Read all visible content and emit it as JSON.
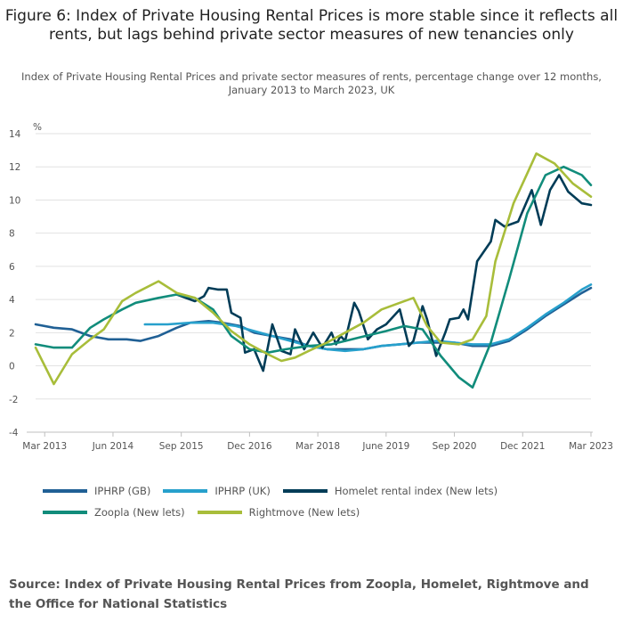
{
  "title": "Figure 6: Index of Private Housing Rental Prices is more stable since it reflects all rents, but lags behind private sector measures of new tenancies only",
  "subtitle": "Index of Private Housing Rental Prices and private sector measures of rents, percentage change over 12 months, January 2013 to March 2023, UK",
  "source": "Source: Index of Private Housing Rental Prices from Zoopla, Homelet, Rightmove and the Office for National Statistics",
  "chart_data": {
    "type": "line",
    "title": "Figure 6: Index of Private Housing Rental Prices is more stable since it reflects all rents, but lags behind private sector measures of new tenancies only",
    "subtitle": "Index of Private Housing Rental Prices and private sector measures of rents, percentage change over 12 months, January 2013 to March 2023, UK",
    "ylabel": "%",
    "xlabel": "",
    "ylim": [
      -4,
      14
    ],
    "yticks": [
      -4,
      -2,
      0,
      2,
      4,
      6,
      8,
      10,
      12,
      14
    ],
    "xlim": [
      "2013-01",
      "2023-03"
    ],
    "xticks": [
      {
        "date": "2013-03",
        "label": "Mar 2013"
      },
      {
        "date": "2014-06",
        "label": "Jun 2014"
      },
      {
        "date": "2015-09",
        "label": "Sep 2015"
      },
      {
        "date": "2016-12",
        "label": "Dec 2016"
      },
      {
        "date": "2018-03",
        "label": "Mar 2018"
      },
      {
        "date": "2019-06",
        "label": "June 2019"
      },
      {
        "date": "2020-09",
        "label": "Sep 2020"
      },
      {
        "date": "2021-12",
        "label": "Dec 2021"
      },
      {
        "date": "2023-03",
        "label": "Mar 2023"
      }
    ],
    "grid": true,
    "legend_position": "bottom",
    "series": [
      {
        "name": "IPHRP (GB)",
        "color": "#206095",
        "points": [
          [
            "2013-01",
            2.5
          ],
          [
            "2013-05",
            2.3
          ],
          [
            "2013-09",
            2.2
          ],
          [
            "2014-01",
            1.8
          ],
          [
            "2014-05",
            1.6
          ],
          [
            "2014-09",
            1.6
          ],
          [
            "2014-12",
            1.5
          ],
          [
            "2015-04",
            1.8
          ],
          [
            "2015-08",
            2.3
          ],
          [
            "2015-11",
            2.6
          ],
          [
            "2016-03",
            2.7
          ],
          [
            "2016-06",
            2.6
          ],
          [
            "2016-10",
            2.4
          ],
          [
            "2017-01",
            2.0
          ],
          [
            "2017-05",
            1.8
          ],
          [
            "2017-09",
            1.6
          ],
          [
            "2018-01",
            1.2
          ],
          [
            "2018-05",
            1.0
          ],
          [
            "2018-09",
            1.0
          ],
          [
            "2019-01",
            1.0
          ],
          [
            "2019-05",
            1.2
          ],
          [
            "2019-09",
            1.3
          ],
          [
            "2020-01",
            1.4
          ],
          [
            "2020-05",
            1.4
          ],
          [
            "2020-09",
            1.4
          ],
          [
            "2021-01",
            1.2
          ],
          [
            "2021-05",
            1.2
          ],
          [
            "2021-09",
            1.5
          ],
          [
            "2022-01",
            2.2
          ],
          [
            "2022-05",
            3.0
          ],
          [
            "2022-09",
            3.7
          ],
          [
            "2023-01",
            4.4
          ],
          [
            "2023-03",
            4.7
          ]
        ]
      },
      {
        "name": "IPHRP (UK)",
        "color": "#27a0cc",
        "points": [
          [
            "2015-01",
            2.5
          ],
          [
            "2015-06",
            2.5
          ],
          [
            "2015-11",
            2.6
          ],
          [
            "2016-04",
            2.6
          ],
          [
            "2016-09",
            2.4
          ],
          [
            "2017-01",
            2.1
          ],
          [
            "2017-05",
            1.8
          ],
          [
            "2017-09",
            1.5
          ],
          [
            "2018-01",
            1.2
          ],
          [
            "2018-05",
            1.0
          ],
          [
            "2018-09",
            0.9
          ],
          [
            "2019-01",
            1.0
          ],
          [
            "2019-05",
            1.2
          ],
          [
            "2019-09",
            1.3
          ],
          [
            "2020-01",
            1.4
          ],
          [
            "2020-05",
            1.5
          ],
          [
            "2020-09",
            1.4
          ],
          [
            "2021-01",
            1.3
          ],
          [
            "2021-05",
            1.3
          ],
          [
            "2021-09",
            1.6
          ],
          [
            "2022-01",
            2.3
          ],
          [
            "2022-05",
            3.1
          ],
          [
            "2022-09",
            3.8
          ],
          [
            "2023-01",
            4.6
          ],
          [
            "2023-03",
            4.9
          ]
        ]
      },
      {
        "name": "Homelet rental index (New lets)",
        "color": "#003c57",
        "points": [
          [
            "2015-08",
            4.3
          ],
          [
            "2015-10",
            4.1
          ],
          [
            "2015-12",
            3.9
          ],
          [
            "2016-02",
            4.2
          ],
          [
            "2016-03",
            4.7
          ],
          [
            "2016-05",
            4.6
          ],
          [
            "2016-07",
            4.6
          ],
          [
            "2016-08",
            3.2
          ],
          [
            "2016-10",
            2.9
          ],
          [
            "2016-11",
            0.8
          ],
          [
            "2017-01",
            1.0
          ],
          [
            "2017-03",
            -0.3
          ],
          [
            "2017-05",
            2.5
          ],
          [
            "2017-07",
            0.9
          ],
          [
            "2017-09",
            0.7
          ],
          [
            "2017-10",
            2.2
          ],
          [
            "2017-12",
            1.0
          ],
          [
            "2018-02",
            2.0
          ],
          [
            "2018-04",
            1.1
          ],
          [
            "2018-06",
            2.0
          ],
          [
            "2018-07",
            1.3
          ],
          [
            "2018-08",
            1.8
          ],
          [
            "2018-09",
            1.5
          ],
          [
            "2018-11",
            3.8
          ],
          [
            "2018-12",
            3.3
          ],
          [
            "2019-02",
            1.6
          ],
          [
            "2019-04",
            2.2
          ],
          [
            "2019-06",
            2.5
          ],
          [
            "2019-09",
            3.4
          ],
          [
            "2019-11",
            1.2
          ],
          [
            "2019-12",
            1.5
          ],
          [
            "2020-02",
            3.6
          ],
          [
            "2020-03",
            2.8
          ],
          [
            "2020-05",
            0.6
          ],
          [
            "2020-07",
            2.0
          ],
          [
            "2020-08",
            2.8
          ],
          [
            "2020-10",
            2.9
          ],
          [
            "2020-11",
            3.4
          ],
          [
            "2020-12",
            2.8
          ],
          [
            "2021-02",
            6.3
          ],
          [
            "2021-05",
            7.5
          ],
          [
            "2021-06",
            8.8
          ],
          [
            "2021-08",
            8.4
          ],
          [
            "2021-11",
            8.7
          ],
          [
            "2022-02",
            10.6
          ],
          [
            "2022-04",
            8.5
          ],
          [
            "2022-06",
            10.6
          ],
          [
            "2022-08",
            11.5
          ],
          [
            "2022-10",
            10.5
          ],
          [
            "2023-01",
            9.8
          ],
          [
            "2023-03",
            9.7
          ]
        ]
      },
      {
        "name": "Zoopla (New lets)",
        "color": "#118c7b",
        "points": [
          [
            "2013-01",
            1.3
          ],
          [
            "2013-05",
            1.1
          ],
          [
            "2013-09",
            1.1
          ],
          [
            "2014-01",
            2.3
          ],
          [
            "2014-04",
            2.8
          ],
          [
            "2014-08",
            3.4
          ],
          [
            "2014-11",
            3.8
          ],
          [
            "2015-04",
            4.1
          ],
          [
            "2015-08",
            4.3
          ],
          [
            "2015-12",
            4.1
          ],
          [
            "2016-04",
            3.4
          ],
          [
            "2016-08",
            1.8
          ],
          [
            "2016-12",
            1.0
          ],
          [
            "2017-04",
            0.8
          ],
          [
            "2017-08",
            1.0
          ],
          [
            "2018-01",
            1.2
          ],
          [
            "2018-06",
            1.3
          ],
          [
            "2018-12",
            1.7
          ],
          [
            "2019-06",
            2.1
          ],
          [
            "2019-10",
            2.4
          ],
          [
            "2020-02",
            2.2
          ],
          [
            "2020-06",
            0.6
          ],
          [
            "2020-10",
            -0.7
          ],
          [
            "2021-01",
            -1.3
          ],
          [
            "2021-05",
            1.4
          ],
          [
            "2021-09",
            5.2
          ],
          [
            "2022-01",
            9.2
          ],
          [
            "2022-05",
            11.5
          ],
          [
            "2022-09",
            12.0
          ],
          [
            "2023-01",
            11.5
          ],
          [
            "2023-03",
            10.9
          ]
        ]
      },
      {
        "name": "Rightmove (New lets)",
        "color": "#a8bd3a",
        "points": [
          [
            "2013-01",
            1.1
          ],
          [
            "2013-05",
            -1.1
          ],
          [
            "2013-09",
            0.7
          ],
          [
            "2014-01",
            1.6
          ],
          [
            "2014-04",
            2.2
          ],
          [
            "2014-08",
            3.9
          ],
          [
            "2014-11",
            4.4
          ],
          [
            "2015-04",
            5.1
          ],
          [
            "2015-08",
            4.4
          ],
          [
            "2015-12",
            4.1
          ],
          [
            "2016-04",
            3.2
          ],
          [
            "2016-08",
            2.1
          ],
          [
            "2016-12",
            1.3
          ],
          [
            "2017-04",
            0.7
          ],
          [
            "2017-07",
            0.3
          ],
          [
            "2017-10",
            0.5
          ],
          [
            "2018-01",
            0.9
          ],
          [
            "2018-05",
            1.4
          ],
          [
            "2018-09",
            2.0
          ],
          [
            "2019-01",
            2.6
          ],
          [
            "2019-05",
            3.4
          ],
          [
            "2019-09",
            3.8
          ],
          [
            "2019-12",
            4.1
          ],
          [
            "2020-03",
            2.4
          ],
          [
            "2020-06",
            1.4
          ],
          [
            "2020-10",
            1.3
          ],
          [
            "2021-01",
            1.6
          ],
          [
            "2021-04",
            3.0
          ],
          [
            "2021-06",
            6.3
          ],
          [
            "2021-10",
            9.8
          ],
          [
            "2022-01",
            11.6
          ],
          [
            "2022-03",
            12.8
          ],
          [
            "2022-07",
            12.2
          ],
          [
            "2022-11",
            11.0
          ],
          [
            "2023-03",
            10.2
          ]
        ]
      }
    ]
  }
}
